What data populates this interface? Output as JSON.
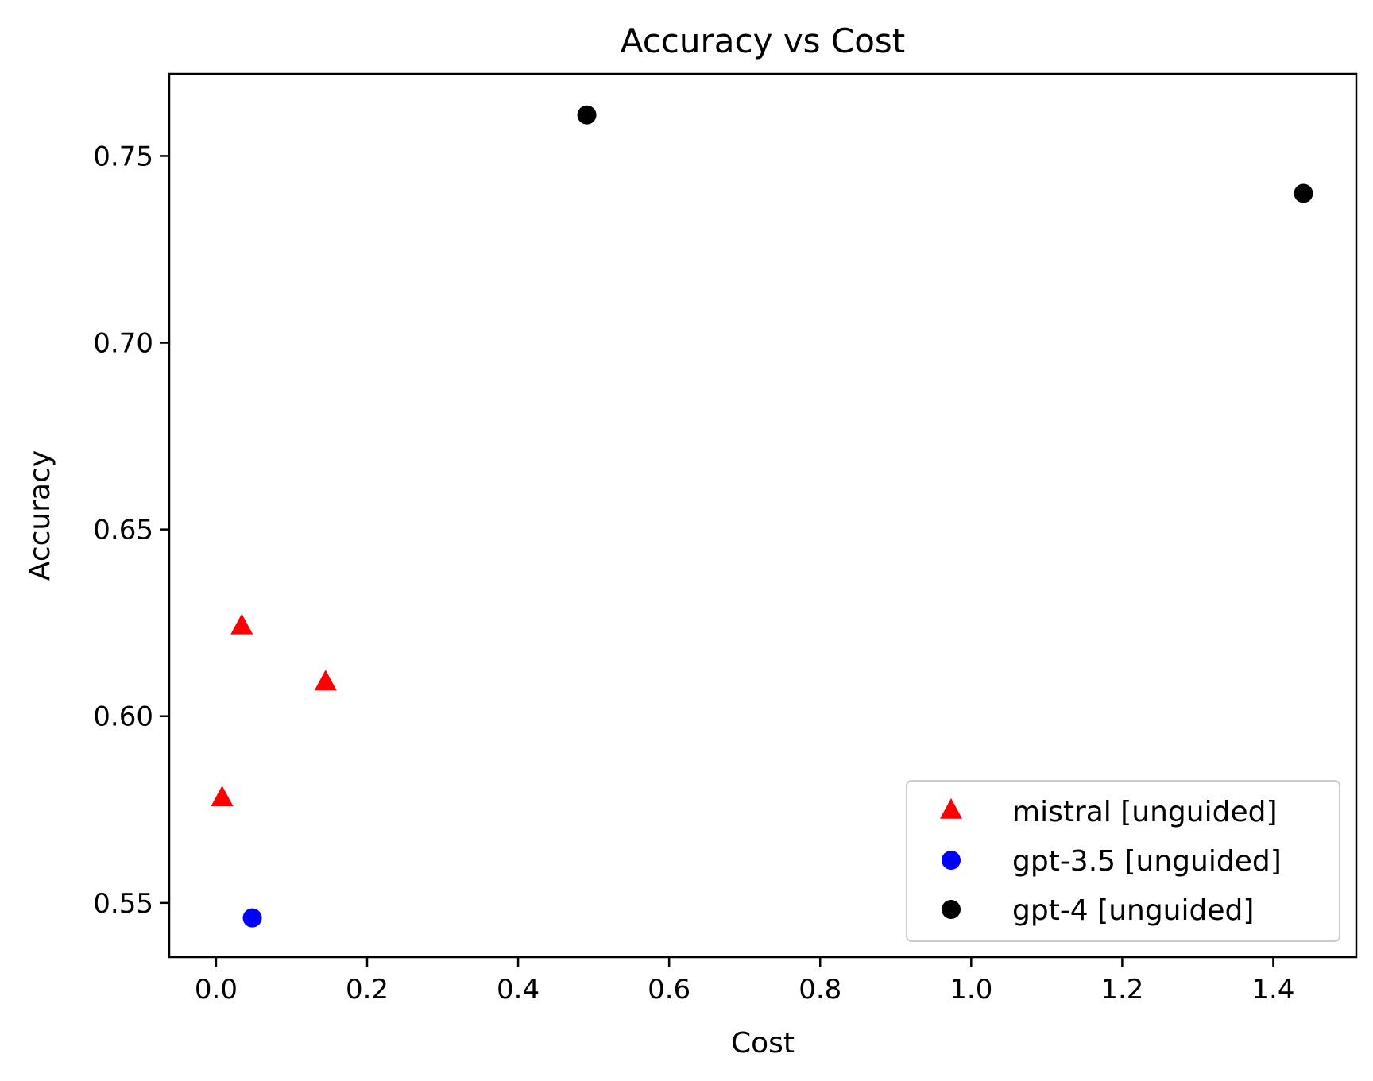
{
  "chart_data": {
    "type": "scatter",
    "title": "Accuracy vs Cost",
    "xlabel": "Cost",
    "ylabel": "Accuracy",
    "xlim": [
      -0.062,
      1.51
    ],
    "ylim": [
      0.5355,
      0.772
    ],
    "xticks": [
      0.0,
      0.2,
      0.4,
      0.6,
      0.8,
      1.0,
      1.2,
      1.4
    ],
    "xtick_labels": [
      "0.0",
      "0.2",
      "0.4",
      "0.6",
      "0.8",
      "1.0",
      "1.2",
      "1.4"
    ],
    "yticks": [
      0.55,
      0.6,
      0.65,
      0.7,
      0.75
    ],
    "ytick_labels": [
      "0.55",
      "0.60",
      "0.65",
      "0.70",
      "0.75"
    ],
    "grid": false,
    "legend": "lower-right",
    "series": [
      {
        "name": "mistral [unguided]",
        "marker": "triangle",
        "color": "#ff0000",
        "points": [
          {
            "x": 0.008,
            "y": 0.578
          },
          {
            "x": 0.034,
            "y": 0.624
          },
          {
            "x": 0.145,
            "y": 0.609
          }
        ]
      },
      {
        "name": "gpt-3.5 [unguided]",
        "marker": "circle",
        "color": "#0000ff",
        "points": [
          {
            "x": 0.048,
            "y": 0.546
          }
        ]
      },
      {
        "name": "gpt-4 [unguided]",
        "marker": "circle",
        "color": "#000000",
        "points": [
          {
            "x": 0.491,
            "y": 0.761
          },
          {
            "x": 1.44,
            "y": 0.74
          }
        ]
      }
    ]
  }
}
